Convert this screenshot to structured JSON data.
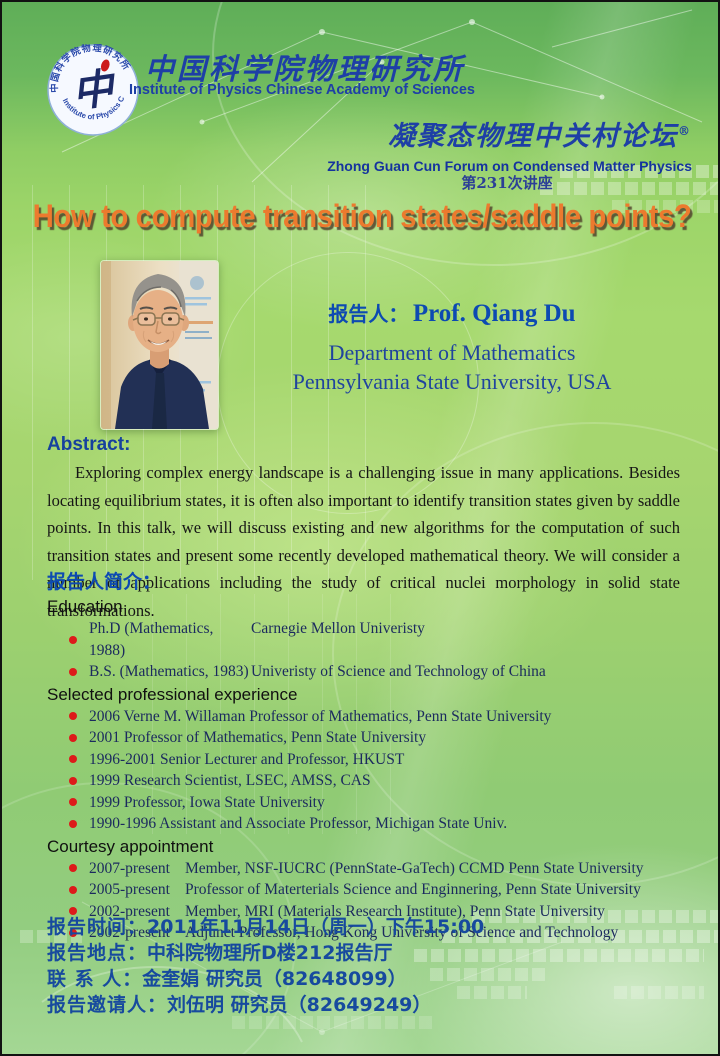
{
  "header": {
    "logo": {
      "arc_top": "中国科学院物理研究所",
      "arc_bottom": "Institute of Physics CAS",
      "center_glyph": "中"
    },
    "institute_cn": "中国科学院物理研究所",
    "institute_en": "Institute of Physics Chinese Academy of Sciences",
    "forum_cn": "凝聚态物理中关村论坛",
    "forum_reg": "®",
    "forum_en": "Zhong Guan Cun Forum on Condensed Matter Physics",
    "lecture_number": "第231次讲座"
  },
  "title": "How to compute transition states/saddle points?",
  "speaker": {
    "label": "报告人：",
    "name": "Prof. Qiang Du",
    "department": "Department of Mathematics",
    "university": "Pennsylvania State University, USA"
  },
  "abstract": {
    "heading": "Abstract:",
    "text": "Exploring complex energy landscape is a challenging issue in many applications. Besides locating equilibrium states, it is often also important to identify transition states given by saddle points. In this talk, we will discuss existing and new algorithms for the computation of such transition states and present some recently developed mathematical theory. We will consider a number of applications including the study of critical nuclei morphology in solid state transformations."
  },
  "bio": {
    "heading": "报告人简介：",
    "sections": [
      {
        "title": "Education",
        "items": [
          {
            "col1": "Ph.D (Mathematics, 1988)",
            "col2": "Carnegie Mellon Univeristy"
          },
          {
            "col1": "B.S. (Mathematics, 1983)",
            "col2": "Univeristy of Science and Technology of China"
          }
        ]
      },
      {
        "title": "Selected professional experience",
        "items": [
          {
            "col1": "2006 Verne M. Willaman Professor of Mathematics, Penn State University",
            "col2": ""
          },
          {
            "col1": "2001 Professor of Mathematics, Penn State University",
            "col2": ""
          },
          {
            "col1": "1996-2001 Senior Lecturer and Professor, HKUST",
            "col2": ""
          },
          {
            "col1": "1999 Research Scientist, LSEC, AMSS, CAS",
            "col2": ""
          },
          {
            "col1": "1999 Professor, Iowa State University",
            "col2": ""
          },
          {
            "col1": "1990-1996 Assistant and Associate Professor, Michigan State Univ.",
            "col2": ""
          }
        ]
      },
      {
        "title": "Courtesy appointment",
        "items": [
          {
            "col1": "2007-present",
            "col2": "Member, NSF-IUCRC (PennState-GaTech) CCMD Penn State University"
          },
          {
            "col1": "2005-present",
            "col2": "Professor of Materterials Science and Enginnering, Penn State University"
          },
          {
            "col1": "2002-present",
            "col2": "Member, MRI (Materials Research Institute), Penn State University"
          },
          {
            "col1": "2002-present",
            "col2": "Adjunct Professor, Hong Kong University of Science and Technology"
          }
        ]
      }
    ]
  },
  "footer": {
    "lines": [
      {
        "label": "报告时间：",
        "value": "2011年11月14日（周一）下午15:00"
      },
      {
        "label": "报告地点：",
        "value": "中科院物理所D楼212报告厅"
      },
      {
        "label": "联 系 人：",
        "value": "金奎娟 研究员（82648099）"
      },
      {
        "label": "报告邀请人：",
        "value": "刘伍明 研究员（82649249）"
      }
    ]
  },
  "colors": {
    "header_blue": "#1e3fa6",
    "title_orange": "#ec7a2e",
    "accent_blue": "#0d4ab2",
    "bullet_red": "#dd1a1a",
    "bio_navy": "#1b2a5e",
    "footer_blue": "#174a9e",
    "background_green": "#a3d76b"
  }
}
